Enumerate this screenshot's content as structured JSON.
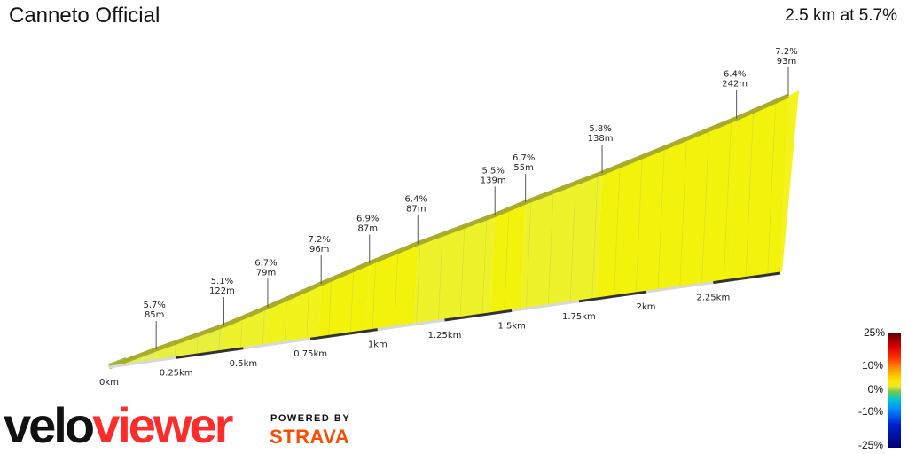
{
  "header": {
    "title": "Canneto Official",
    "summary": "2.5 km at 5.7%"
  },
  "chart_data": {
    "type": "area",
    "title": "Canneto Official",
    "xlabel": "",
    "ylabel": "",
    "x_unit": "km",
    "xlim": [
      0,
      2.5
    ],
    "x_ticks": [
      {
        "value": 0,
        "label": "0km"
      },
      {
        "value": 0.25,
        "label": "0.25km"
      },
      {
        "value": 0.5,
        "label": "0.5km"
      },
      {
        "value": 0.75,
        "label": "0.75km"
      },
      {
        "value": 1.0,
        "label": "1km"
      },
      {
        "value": 1.25,
        "label": "1.25km"
      },
      {
        "value": 1.5,
        "label": "1.5km"
      },
      {
        "value": 1.75,
        "label": "1.75km"
      },
      {
        "value": 2.0,
        "label": "2km"
      },
      {
        "value": 2.25,
        "label": "2.25km"
      }
    ],
    "segments": [
      {
        "grade": "5.7%",
        "length": "85m"
      },
      {
        "grade": "5.1%",
        "length": "122m"
      },
      {
        "grade": "6.7%",
        "length": "79m"
      },
      {
        "grade": "7.2%",
        "length": "96m"
      },
      {
        "grade": "6.9%",
        "length": "87m"
      },
      {
        "grade": "6.4%",
        "length": "87m"
      },
      {
        "grade": "5.5%",
        "length": "139m"
      },
      {
        "grade": "6.7%",
        "length": "55m"
      },
      {
        "grade": "5.8%",
        "length": "138m"
      },
      {
        "grade": "6.4%",
        "length": "242m"
      },
      {
        "grade": "7.2%",
        "length": "93m"
      }
    ],
    "legend": {
      "title": "",
      "position": "bottom-right",
      "ticks": [
        "25%",
        "10%",
        "0%",
        "-10%",
        "-25%"
      ]
    }
  },
  "branding": {
    "logo_part1": "velo",
    "logo_part2": "viewer",
    "powered_by": "POWERED BY",
    "partner": "STRAVA"
  },
  "colors": {
    "fill_main": "#f2f20a",
    "fill_light": "#e3ee5c",
    "fill_start": "#8fc84a",
    "top_edge": "#a8ac2a",
    "right_face": "#f4f41c",
    "brand_red": "#ff2c2c",
    "strava_orange": "#fc4c02"
  }
}
